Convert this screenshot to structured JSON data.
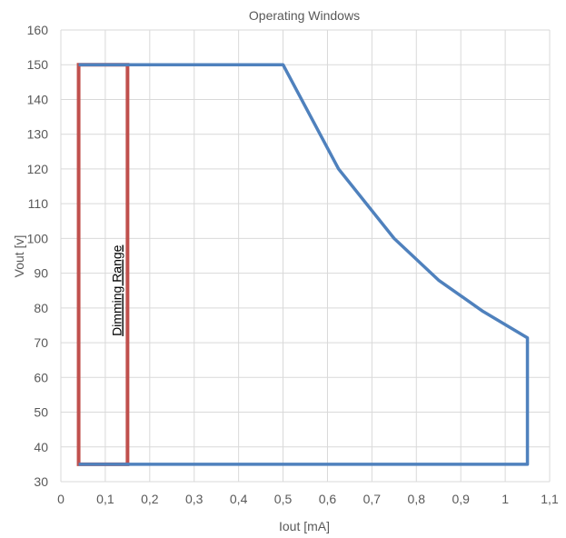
{
  "chart_data": {
    "type": "line",
    "title": "Operating Windows",
    "xlabel": "Iout [mA]",
    "ylabel": "Vout [v]",
    "xlim": [
      0,
      1.1
    ],
    "ylim": [
      30,
      160
    ],
    "grid": true,
    "x_ticks": [
      0,
      0.1,
      0.2,
      0.3,
      0.4,
      0.5,
      0.6,
      0.7,
      0.8,
      0.9,
      1.0,
      1.1
    ],
    "x_tick_labels": [
      "0",
      "0,1",
      "0,2",
      "0,3",
      "0,4",
      "0,5",
      "0,6",
      "0,7",
      "0,8",
      "0,9",
      "1",
      "1,1"
    ],
    "y_ticks": [
      30,
      40,
      50,
      60,
      70,
      80,
      90,
      100,
      110,
      120,
      130,
      140,
      150,
      160
    ],
    "y_tick_labels": [
      "30",
      "40",
      "50",
      "60",
      "70",
      "80",
      "90",
      "100",
      "110",
      "120",
      "130",
      "140",
      "150",
      "160"
    ],
    "series": [
      {
        "color": "#4f81bd",
        "x": [
          0.04,
          0.5,
          0.625,
          0.75,
          0.85,
          0.95,
          1.05,
          1.05,
          0.04
        ],
        "y": [
          150,
          150,
          120,
          100,
          88,
          79,
          71.4,
          35,
          35
        ]
      }
    ],
    "annotations": [
      {
        "shape": "rectangle",
        "color": "#c0504d",
        "x_range": [
          0.04,
          0.15
        ],
        "y_range": [
          35,
          150
        ],
        "text": "Dimming Range",
        "text_x": 0.095,
        "text_y": 85
      }
    ]
  }
}
